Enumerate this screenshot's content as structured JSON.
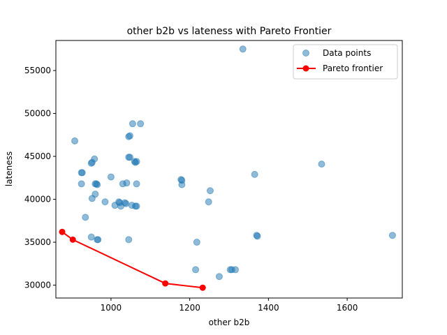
{
  "chart_data": {
    "type": "scatter",
    "title": "other b2b vs lateness with Pareto Frontier",
    "xlabel": "other b2b",
    "ylabel": "lateness",
    "xlim": [
      860,
      1740
    ],
    "ylim": [
      28500,
      58500
    ],
    "xticks": [
      1000,
      1200,
      1400,
      1600
    ],
    "yticks": [
      30000,
      35000,
      40000,
      45000,
      50000,
      55000
    ],
    "legend_position": "top-right",
    "grid": false,
    "colors": {
      "points": "#1f77b4",
      "frontier": "#ff0000"
    },
    "series": [
      {
        "name": "Data points",
        "kind": "scatter",
        "points": [
          [
            1335,
            57500
          ],
          [
            1055,
            48800
          ],
          [
            1075,
            48800
          ],
          [
            1045,
            47300
          ],
          [
            1048,
            47400
          ],
          [
            908,
            46800
          ],
          [
            958,
            44700
          ],
          [
            950,
            44200
          ],
          [
            952,
            44300
          ],
          [
            1045,
            44900
          ],
          [
            1048,
            44900
          ],
          [
            1060,
            44400
          ],
          [
            1062,
            44300
          ],
          [
            1065,
            44400
          ],
          [
            1535,
            44100
          ],
          [
            925,
            43100
          ],
          [
            927,
            43100
          ],
          [
            1365,
            42900
          ],
          [
            1000,
            42600
          ],
          [
            1178,
            42300
          ],
          [
            1180,
            42200
          ],
          [
            925,
            41800
          ],
          [
            960,
            41800
          ],
          [
            963,
            41800
          ],
          [
            965,
            41700
          ],
          [
            1030,
            41800
          ],
          [
            1040,
            41900
          ],
          [
            1065,
            41800
          ],
          [
            1180,
            41700
          ],
          [
            1252,
            41000
          ],
          [
            960,
            40600
          ],
          [
            952,
            40100
          ],
          [
            985,
            39700
          ],
          [
            1010,
            39300
          ],
          [
            1020,
            39700
          ],
          [
            1022,
            39600
          ],
          [
            1025,
            39200
          ],
          [
            1035,
            39600
          ],
          [
            1038,
            39500
          ],
          [
            1053,
            39300
          ],
          [
            1062,
            39200
          ],
          [
            1065,
            39200
          ],
          [
            1248,
            39700
          ],
          [
            935,
            37900
          ],
          [
            950,
            35600
          ],
          [
            965,
            35300
          ],
          [
            967,
            35300
          ],
          [
            1045,
            35300
          ],
          [
            1218,
            35000
          ],
          [
            1370,
            35800
          ],
          [
            1372,
            35700
          ],
          [
            1715,
            35800
          ],
          [
            1215,
            31800
          ],
          [
            1303,
            31800
          ],
          [
            1307,
            31800
          ],
          [
            1316,
            31800
          ],
          [
            1275,
            31000
          ]
        ]
      },
      {
        "name": "Pareto frontier",
        "kind": "line",
        "points": [
          [
            876,
            36200
          ],
          [
            903,
            35300
          ],
          [
            1138,
            30200
          ],
          [
            1233,
            29700
          ]
        ]
      }
    ]
  }
}
